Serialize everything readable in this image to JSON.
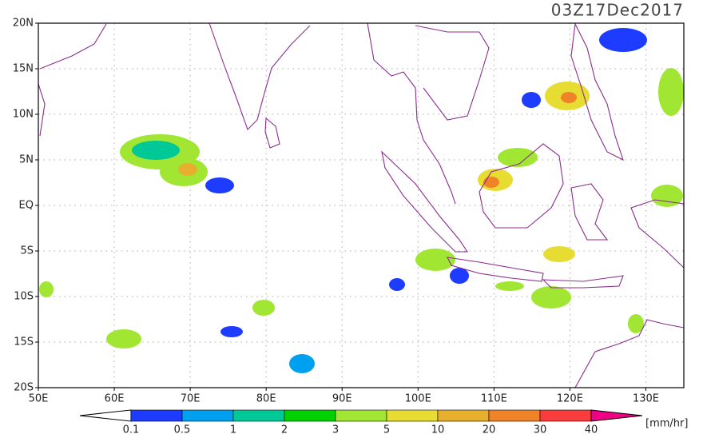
{
  "map": {
    "title": "03Z17Dec2017",
    "xlim": [
      50,
      135
    ],
    "ylim": [
      -20,
      20
    ],
    "xticks": [
      {
        "value": 50,
        "label": "50E"
      },
      {
        "value": 60,
        "label": "60E"
      },
      {
        "value": 70,
        "label": "70E"
      },
      {
        "value": 80,
        "label": "80E"
      },
      {
        "value": 90,
        "label": "90E"
      },
      {
        "value": 100,
        "label": "100E"
      },
      {
        "value": 110,
        "label": "110E"
      },
      {
        "value": 120,
        "label": "120E"
      },
      {
        "value": 130,
        "label": "130E"
      }
    ],
    "yticks": [
      {
        "value": 20,
        "label": "20N"
      },
      {
        "value": 15,
        "label": "15N"
      },
      {
        "value": 10,
        "label": "10N"
      },
      {
        "value": 5,
        "label": "5N"
      },
      {
        "value": 0,
        "label": "EQ"
      },
      {
        "value": -5,
        "label": "5S"
      },
      {
        "value": -10,
        "label": "10S"
      },
      {
        "value": -15,
        "label": "15S"
      },
      {
        "value": -20,
        "label": "20S"
      }
    ],
    "grid": true
  },
  "colorbar": {
    "labels": [
      "0.1",
      "0.5",
      "1",
      "2",
      "3",
      "5",
      "10",
      "20",
      "30",
      "40"
    ],
    "colors": [
      "#ffffff",
      "#1e3cff",
      "#00a0f0",
      "#00c896",
      "#00d200",
      "#a0e632",
      "#e6dc32",
      "#e6af2d",
      "#f08228",
      "#fa3c3c",
      "#f00082"
    ],
    "unit": "[mm/hr]"
  }
}
